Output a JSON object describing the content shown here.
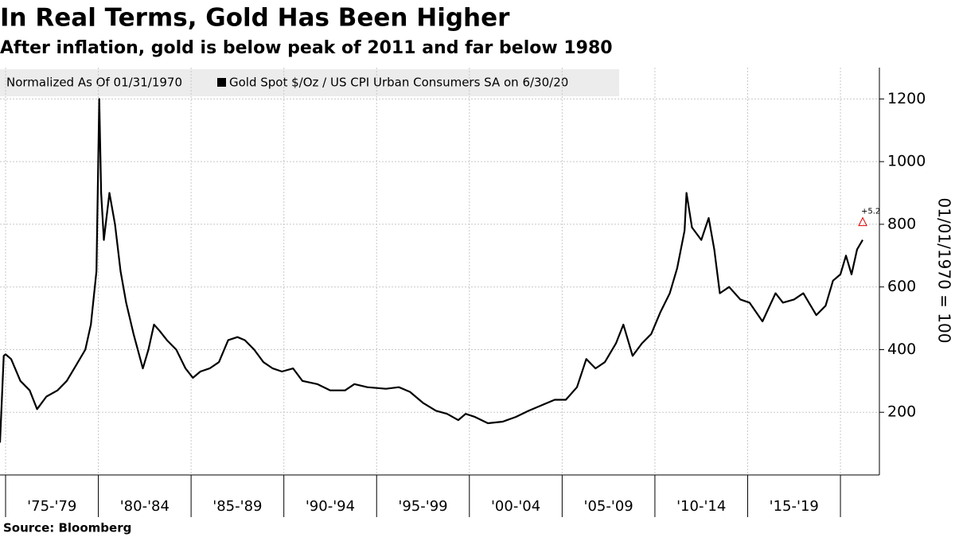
{
  "chart_data": {
    "type": "line",
    "title": "In Real Terms, Gold Has Been Higher",
    "subtitle": "After inflation, gold is below peak of 2011 and far below 1980",
    "legend_title": "Normalized As Of 01/31/1970",
    "y_axis_label": "01/01/1970 = 100",
    "source": "Source: Bloomberg",
    "x": [
      1974.7,
      1974.9,
      1975.0,
      1975.3,
      1975.8,
      1976.3,
      1976.7,
      1977.2,
      1977.8,
      1978.3,
      1978.8,
      1979.3,
      1979.6,
      1979.9,
      1980.05,
      1980.15,
      1980.3,
      1980.6,
      1980.9,
      1981.2,
      1981.5,
      1981.9,
      1982.4,
      1982.7,
      1983.0,
      1983.3,
      1983.7,
      1984.2,
      1984.7,
      1985.1,
      1985.5,
      1986.0,
      1986.5,
      1987.0,
      1987.5,
      1987.9,
      1988.4,
      1988.9,
      1989.4,
      1989.9,
      1990.5,
      1991.0,
      1991.8,
      1992.5,
      1993.3,
      1993.8,
      1994.5,
      1995.5,
      1996.2,
      1996.8,
      1997.5,
      1998.2,
      1998.8,
      1999.4,
      1999.8,
      2000.3,
      2001.0,
      2001.8,
      2002.5,
      2003.2,
      2004.0,
      2004.6,
      2005.2,
      2005.8,
      2006.3,
      2006.8,
      2007.3,
      2007.9,
      2008.3,
      2008.8,
      2009.3,
      2009.8,
      2010.3,
      2010.8,
      2011.2,
      2011.6,
      2011.7,
      2012.0,
      2012.5,
      2012.9,
      2013.2,
      2013.5,
      2014.0,
      2014.6,
      2015.1,
      2015.8,
      2016.5,
      2016.9,
      2017.5,
      2018.0,
      2018.7,
      2019.2,
      2019.6,
      2020.0,
      2020.3,
      2020.6,
      2020.9,
      2021.2
    ],
    "series": [
      {
        "name": "Gold Spot $/Oz / US CPI Urban Consumers SA on 6/30/20",
        "color": "#000000",
        "values": [
          103,
          380,
          385,
          370,
          300,
          270,
          210,
          250,
          270,
          300,
          350,
          400,
          480,
          650,
          1200,
          900,
          750,
          900,
          800,
          650,
          550,
          450,
          340,
          400,
          480,
          460,
          430,
          400,
          340,
          310,
          330,
          340,
          360,
          430,
          440,
          430,
          400,
          360,
          340,
          330,
          340,
          300,
          290,
          270,
          270,
          290,
          280,
          275,
          280,
          265,
          230,
          205,
          195,
          175,
          195,
          185,
          165,
          170,
          185,
          205,
          225,
          240,
          240,
          280,
          370,
          340,
          360,
          420,
          480,
          380,
          420,
          450,
          520,
          580,
          660,
          780,
          900,
          790,
          750,
          820,
          720,
          580,
          600,
          560,
          550,
          490,
          580,
          550,
          560,
          580,
          510,
          540,
          620,
          640,
          700,
          640,
          720,
          750
        ]
      }
    ],
    "annotations": [
      {
        "text": "+5.2",
        "color": "#e00000"
      }
    ],
    "xlim": [
      1974.7,
      2022.1
    ],
    "xticks": [
      1975,
      1980,
      1985,
      1990,
      1995,
      2000,
      2005,
      2010,
      2015,
      2020
    ],
    "xtick_labels": [
      "'75-'79",
      "'80-'84",
      "'85-'89",
      "'90-'94",
      "'95-'99",
      "'00-'04",
      "'05-'09",
      "'10-'14",
      "'15-'19"
    ],
    "ylim": [
      0,
      1300
    ],
    "yticks": [
      200,
      400,
      600,
      800,
      1000,
      1200
    ],
    "grid": true
  }
}
